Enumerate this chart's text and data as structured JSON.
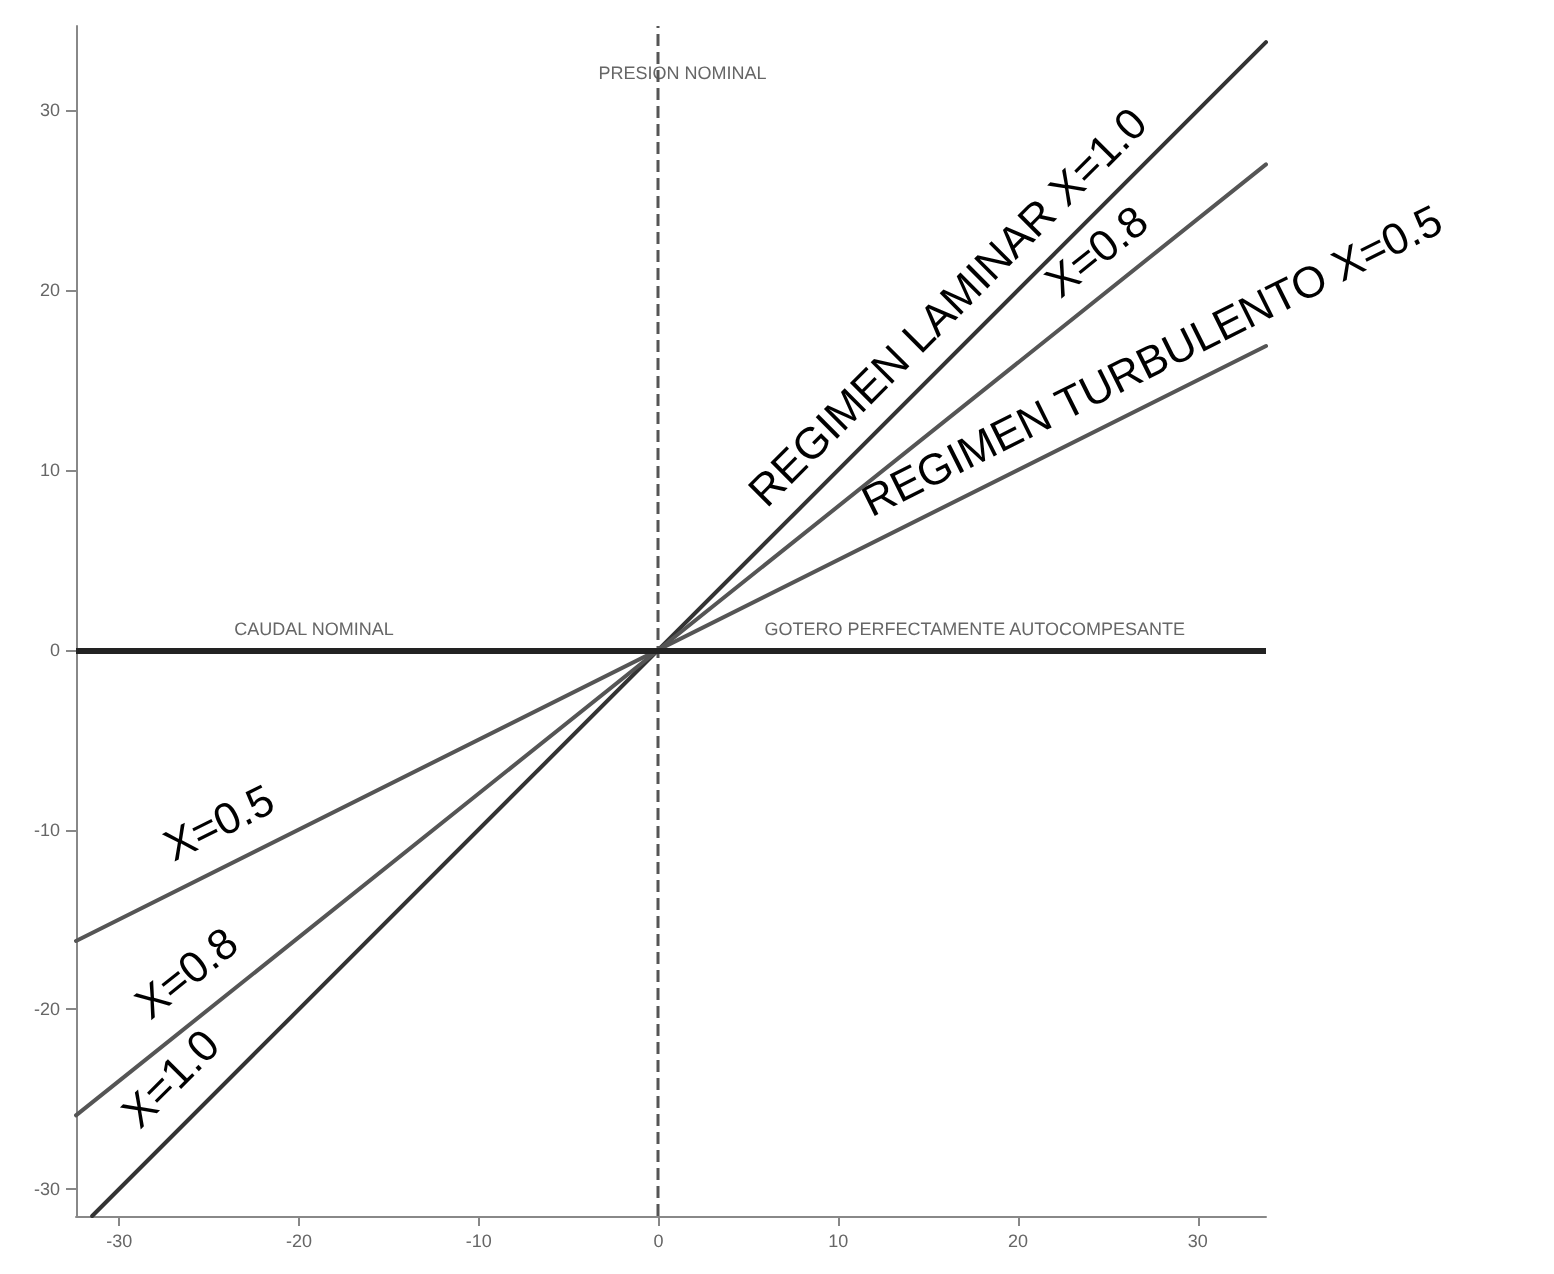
{
  "chart_data": {
    "type": "line",
    "xlim": [
      -32.4,
      33.8
    ],
    "ylim": [
      -31.5,
      34.7
    ],
    "xticks": [
      -30,
      -20,
      -10,
      0,
      10,
      20,
      30
    ],
    "yticks": [
      -30,
      -20,
      -10,
      0,
      10,
      20,
      30
    ],
    "grid": false,
    "marker": "none",
    "series": [
      {
        "name": "REGIMEN LAMINAR X=1.0",
        "color": "#333333",
        "x": [
          -31.5,
          33.8
        ],
        "values": [
          -31.5,
          33.8
        ]
      },
      {
        "name": "X=0.8",
        "color": "#555555",
        "x": [
          -32.4,
          33.8
        ],
        "values": [
          -25.9,
          27
        ]
      },
      {
        "name": "REGIMEN TURBULENTO X=0.5",
        "color": "#555555",
        "x": [
          -32.4,
          33.8
        ],
        "values": [
          -16.2,
          16.9
        ]
      }
    ],
    "ref_lines": [
      {
        "axis": "x",
        "value": 0,
        "label": "PRESION NOMINAL",
        "color": "#555555",
        "line_style": "dashed"
      },
      {
        "axis": "y",
        "value": 0,
        "label": "CAUDAL NOMINAL",
        "color": "#222222",
        "line_style": "solid"
      }
    ],
    "annotations": [
      {
        "text": "X=0.5",
        "x": -23.4,
        "y": -11.7
      },
      {
        "text": "X=0.8",
        "x": -24.8,
        "y": -19.8
      },
      {
        "text": "X=1.0",
        "x": -25.5,
        "y": -25.5
      },
      {
        "text": "GOTERO PERFECTAMENTE AUTOCOMPESANTE",
        "x": 17.6,
        "y": 0
      }
    ]
  }
}
